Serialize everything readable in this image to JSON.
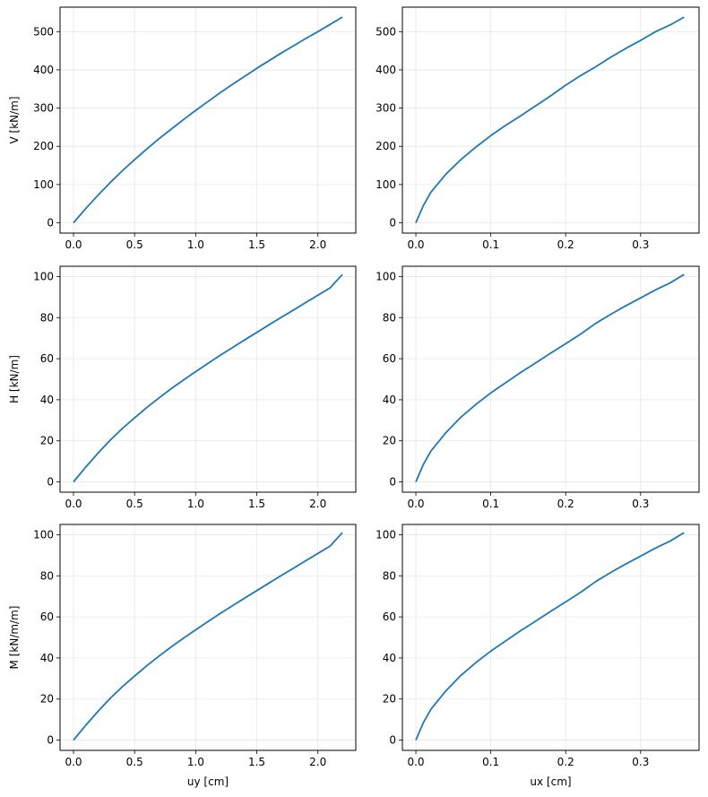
{
  "figure": {
    "grid": true,
    "layout": "3 rows x 2 columns",
    "line_color": "#1f77b4"
  },
  "chart_data": [
    {
      "type": "line",
      "row": 1,
      "col": 1,
      "xlabel": "",
      "ylabel": "V [kN/m]",
      "xlim": [
        -0.11,
        2.31
      ],
      "ylim": [
        -27,
        564
      ],
      "xticks": [
        0.0,
        0.5,
        1.0,
        1.5,
        2.0
      ],
      "xtick_labels": [
        "0.0",
        "0.5",
        "1.0",
        "1.5",
        "2.0"
      ],
      "yticks": [
        0,
        100,
        200,
        300,
        400,
        500
      ],
      "ytick_labels": [
        "0",
        "100",
        "200",
        "300",
        "400",
        "500"
      ],
      "series": [
        {
          "x": [
            0,
            0.1,
            0.2,
            0.3,
            0.4,
            0.5,
            0.6,
            0.7,
            0.8,
            0.9,
            1.0,
            1.1,
            1.2,
            1.3,
            1.4,
            1.5,
            1.6,
            1.7,
            1.8,
            1.9,
            2.0,
            2.1,
            2.2
          ],
          "y": [
            0,
            37,
            72,
            105,
            136,
            165,
            193,
            220,
            245,
            270,
            294,
            317,
            340,
            362,
            383,
            404,
            424,
            444,
            463,
            482,
            500,
            519,
            538
          ]
        }
      ]
    },
    {
      "type": "line",
      "row": 1,
      "col": 2,
      "xlabel": "",
      "ylabel": "",
      "xlim": [
        -0.018,
        0.378
      ],
      "ylim": [
        -27,
        564
      ],
      "xticks": [
        0.0,
        0.1,
        0.2,
        0.3
      ],
      "xtick_labels": [
        "0.0",
        "0.1",
        "0.2",
        "0.3"
      ],
      "yticks": [
        0,
        100,
        200,
        300,
        400,
        500
      ],
      "ytick_labels": [
        "0",
        "100",
        "200",
        "300",
        "400",
        "500"
      ],
      "series": [
        {
          "x": [
            0,
            0.01,
            0.02,
            0.04,
            0.06,
            0.08,
            0.1,
            0.12,
            0.14,
            0.16,
            0.18,
            0.2,
            0.22,
            0.24,
            0.26,
            0.28,
            0.3,
            0.32,
            0.34,
            0.358
          ],
          "y": [
            0,
            45,
            80,
            127,
            165,
            198,
            228,
            255,
            280,
            306,
            332,
            360,
            385,
            408,
            433,
            456,
            477,
            500,
            518,
            538
          ]
        }
      ]
    },
    {
      "type": "line",
      "row": 2,
      "col": 1,
      "xlabel": "",
      "ylabel": "H [kN/m]",
      "xlim": [
        -0.11,
        2.31
      ],
      "ylim": [
        -5,
        105
      ],
      "xticks": [
        0.0,
        0.5,
        1.0,
        1.5,
        2.0
      ],
      "xtick_labels": [
        "0.0",
        "0.5",
        "1.0",
        "1.5",
        "2.0"
      ],
      "yticks": [
        0,
        20,
        40,
        60,
        80,
        100
      ],
      "ytick_labels": [
        "0",
        "20",
        "40",
        "60",
        "80",
        "100"
      ],
      "series": [
        {
          "x": [
            0,
            0.1,
            0.2,
            0.3,
            0.4,
            0.5,
            0.6,
            0.7,
            0.8,
            0.9,
            1.0,
            1.1,
            1.2,
            1.3,
            1.4,
            1.5,
            1.6,
            1.7,
            1.8,
            1.9,
            2.0,
            2.1,
            2.2
          ],
          "y": [
            0,
            7.2,
            14,
            20.3,
            26,
            31.2,
            36.2,
            40.9,
            45.4,
            49.6,
            53.7,
            57.7,
            61.6,
            65.4,
            69.1,
            72.8,
            76.5,
            80.1,
            83.7,
            87.3,
            90.9,
            94.5,
            101
          ]
        }
      ]
    },
    {
      "type": "line",
      "row": 2,
      "col": 2,
      "xlabel": "",
      "ylabel": "",
      "xlim": [
        -0.018,
        0.378
      ],
      "ylim": [
        -5,
        105
      ],
      "xticks": [
        0.0,
        0.1,
        0.2,
        0.3
      ],
      "xtick_labels": [
        "0.0",
        "0.1",
        "0.2",
        "0.3"
      ],
      "yticks": [
        0,
        20,
        40,
        60,
        80,
        100
      ],
      "ytick_labels": [
        "0",
        "20",
        "40",
        "60",
        "80",
        "100"
      ],
      "series": [
        {
          "x": [
            0,
            0.01,
            0.02,
            0.04,
            0.06,
            0.08,
            0.1,
            0.12,
            0.14,
            0.16,
            0.18,
            0.2,
            0.22,
            0.24,
            0.26,
            0.28,
            0.3,
            0.32,
            0.34,
            0.358
          ],
          "y": [
            0,
            8.5,
            15,
            24,
            31.5,
            37.7,
            43.3,
            48.3,
            53.3,
            58,
            62.7,
            67.3,
            72,
            77.2,
            81.6,
            85.7,
            89.6,
            93.5,
            97,
            101
          ]
        }
      ]
    },
    {
      "type": "line",
      "row": 3,
      "col": 1,
      "xlabel": "uy [cm]",
      "ylabel": "M [kN/m/m]",
      "xlim": [
        -0.11,
        2.31
      ],
      "ylim": [
        -5,
        105
      ],
      "xticks": [
        0.0,
        0.5,
        1.0,
        1.5,
        2.0
      ],
      "xtick_labels": [
        "0.0",
        "0.5",
        "1.0",
        "1.5",
        "2.0"
      ],
      "yticks": [
        0,
        20,
        40,
        60,
        80,
        100
      ],
      "ytick_labels": [
        "0",
        "20",
        "40",
        "60",
        "80",
        "100"
      ],
      "series": [
        {
          "x": [
            0,
            0.1,
            0.2,
            0.3,
            0.4,
            0.5,
            0.6,
            0.7,
            0.8,
            0.9,
            1.0,
            1.1,
            1.2,
            1.3,
            1.4,
            1.5,
            1.6,
            1.7,
            1.8,
            1.9,
            2.0,
            2.1,
            2.2
          ],
          "y": [
            0,
            7.2,
            14,
            20.3,
            26,
            31.2,
            36.2,
            40.9,
            45.4,
            49.6,
            53.7,
            57.7,
            61.6,
            65.4,
            69.1,
            72.8,
            76.5,
            80.1,
            83.7,
            87.3,
            90.9,
            94.5,
            101
          ]
        }
      ]
    },
    {
      "type": "line",
      "row": 3,
      "col": 2,
      "xlabel": "ux [cm]",
      "ylabel": "",
      "xlim": [
        -0.018,
        0.378
      ],
      "ylim": [
        -5,
        105
      ],
      "xticks": [
        0.0,
        0.1,
        0.2,
        0.3
      ],
      "xtick_labels": [
        "0.0",
        "0.1",
        "0.2",
        "0.3"
      ],
      "yticks": [
        0,
        20,
        40,
        60,
        80,
        100
      ],
      "ytick_labels": [
        "0",
        "20",
        "40",
        "60",
        "80",
        "100"
      ],
      "series": [
        {
          "x": [
            0,
            0.01,
            0.02,
            0.04,
            0.06,
            0.08,
            0.1,
            0.12,
            0.14,
            0.16,
            0.18,
            0.2,
            0.22,
            0.24,
            0.26,
            0.28,
            0.3,
            0.32,
            0.34,
            0.358
          ],
          "y": [
            0,
            8.5,
            15,
            24,
            31.5,
            37.7,
            43.3,
            48.3,
            53.3,
            58,
            62.7,
            67.3,
            72,
            77.2,
            81.6,
            85.7,
            89.6,
            93.5,
            97,
            101
          ]
        }
      ]
    }
  ]
}
